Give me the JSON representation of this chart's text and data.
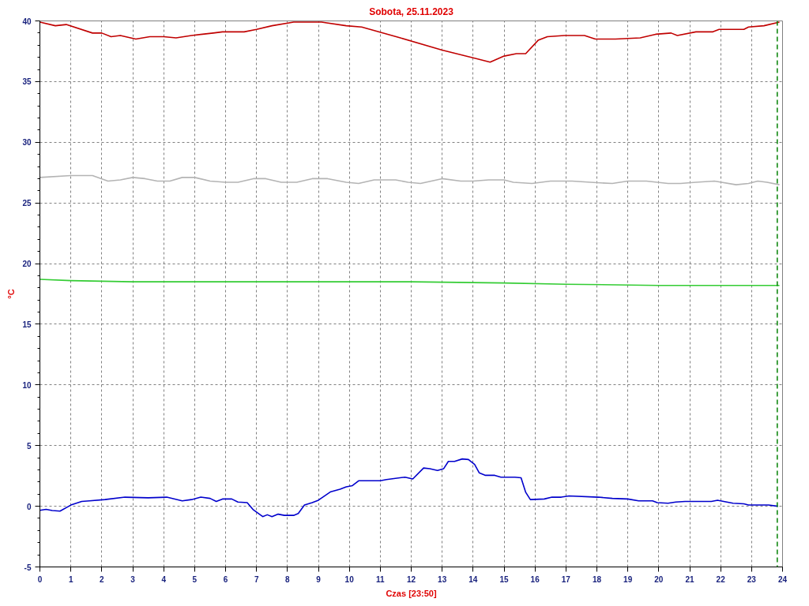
{
  "chart_data": {
    "type": "line",
    "title": "Sobota, 25.11.2023",
    "xlabel": "Czas [23:50]",
    "ylabel": "°C",
    "xlim": [
      0,
      24
    ],
    "ylim": [
      -5,
      40
    ],
    "xticks": [
      0,
      1,
      2,
      3,
      4,
      5,
      6,
      7,
      8,
      9,
      10,
      11,
      12,
      13,
      14,
      15,
      16,
      17,
      18,
      19,
      20,
      21,
      22,
      23,
      24
    ],
    "yticks": [
      -5,
      {
        "value": -4,
        "label": null
      },
      {
        "value": -3,
        "label": null
      },
      {
        "value": -2,
        "label": null
      },
      {
        "value": -1,
        "label": null
      },
      0,
      {
        "value": 1,
        "label": null
      },
      {
        "value": 2,
        "label": null
      },
      {
        "value": 3,
        "label": null
      },
      {
        "value": 4,
        "label": null
      },
      5,
      {
        "value": 6,
        "label": null
      },
      {
        "value": 7,
        "label": null
      },
      {
        "value": 8,
        "label": null
      },
      {
        "value": 9,
        "label": null
      },
      10,
      {
        "value": 11,
        "label": null
      },
      {
        "value": 12,
        "label": null
      },
      {
        "value": 13,
        "label": null
      },
      {
        "value": 14,
        "label": null
      },
      15,
      {
        "value": 16,
        "label": null
      },
      {
        "value": 17,
        "label": null
      },
      {
        "value": 18,
        "label": null
      },
      {
        "value": 19,
        "label": null
      },
      20,
      {
        "value": 21,
        "label": null
      },
      {
        "value": 22,
        "label": null
      },
      {
        "value": 23,
        "label": null
      },
      {
        "value": 24,
        "label": null
      },
      25,
      {
        "value": 26,
        "label": null
      },
      {
        "value": 27,
        "label": null
      },
      {
        "value": 28,
        "label": null
      },
      {
        "value": 29,
        "label": null
      },
      30,
      {
        "value": 31,
        "label": null
      },
      {
        "value": 32,
        "label": null
      },
      {
        "value": 33,
        "label": null
      },
      {
        "value": 34,
        "label": null
      },
      35,
      {
        "value": 36,
        "label": null
      },
      {
        "value": 37,
        "label": null
      },
      {
        "value": 38,
        "label": null
      },
      {
        "value": 39,
        "label": null
      },
      40
    ],
    "grid": true,
    "line_style": "solid",
    "marker": "none",
    "ref_lines": [
      {
        "axis": "x",
        "value": 23.83,
        "color": "#008000",
        "line_style": "dashed"
      }
    ],
    "series": [
      {
        "color": "#c00000",
        "x": [
          0,
          0.5,
          0.85,
          1.7,
          2.0,
          2.3,
          2.6,
          3.1,
          3.55,
          4.0,
          4.4,
          4.9,
          5.6,
          5.9,
          6.6,
          7.0,
          7.5,
          8.2,
          9.1,
          9.9,
          10.4,
          11.65,
          13.0,
          14.1,
          14.55,
          15.0,
          15.4,
          15.7,
          16.1,
          16.4,
          16.95,
          17.6,
          17.95,
          18.6,
          19.4,
          19.9,
          20.4,
          20.6,
          21.2,
          21.75,
          21.95,
          22.75,
          22.9,
          23.4,
          23.9
        ],
        "values": [
          39.9,
          39.6,
          39.7,
          39.0,
          39.0,
          38.7,
          38.8,
          38.5,
          38.7,
          38.7,
          38.6,
          38.8,
          39.0,
          39.1,
          39.1,
          39.3,
          39.6,
          39.9,
          39.9,
          39.6,
          39.5,
          38.6,
          37.6,
          36.9,
          36.6,
          37.1,
          37.3,
          37.3,
          38.4,
          38.7,
          38.8,
          38.8,
          38.5,
          38.5,
          38.6,
          38.9,
          39.0,
          38.8,
          39.1,
          39.1,
          39.3,
          39.3,
          39.5,
          39.6,
          39.9
        ]
      },
      {
        "color": "#b4b4b4",
        "x": [
          0,
          1.0,
          1.7,
          2.2,
          2.6,
          3.0,
          3.4,
          3.8,
          4.2,
          4.6,
          5.0,
          5.5,
          6.0,
          6.4,
          6.9,
          7.3,
          7.8,
          8.3,
          8.8,
          9.3,
          9.9,
          10.3,
          10.8,
          11.5,
          11.9,
          12.3,
          13.0,
          13.6,
          14.0,
          14.5,
          15.0,
          15.3,
          15.9,
          16.5,
          17.2,
          17.8,
          18.5,
          19.0,
          19.6,
          20.3,
          20.7,
          21.2,
          21.8,
          22.5,
          22.9,
          23.2,
          23.5,
          23.9
        ],
        "values": [
          27.1,
          27.25,
          27.25,
          26.8,
          26.9,
          27.1,
          27.0,
          26.8,
          26.8,
          27.1,
          27.1,
          26.8,
          26.7,
          26.7,
          27.0,
          27.0,
          26.7,
          26.7,
          27.0,
          27.0,
          26.7,
          26.6,
          26.9,
          26.9,
          26.7,
          26.6,
          27.0,
          26.8,
          26.8,
          26.9,
          26.9,
          26.7,
          26.6,
          26.8,
          26.8,
          26.7,
          26.6,
          26.8,
          26.8,
          26.6,
          26.6,
          26.7,
          26.8,
          26.5,
          26.6,
          26.8,
          26.7,
          26.5
        ]
      },
      {
        "color": "#33cc33",
        "x": [
          0,
          1,
          3,
          6,
          9,
          12,
          15,
          17,
          20,
          22,
          23.9
        ],
        "values": [
          18.7,
          18.6,
          18.5,
          18.5,
          18.5,
          18.5,
          18.4,
          18.3,
          18.2,
          18.2,
          18.2
        ]
      },
      {
        "color": "#0000cc",
        "x": [
          0,
          0.2,
          0.4,
          0.65,
          1.0,
          1.35,
          1.6,
          2.1,
          2.75,
          3.5,
          4.1,
          4.6,
          4.9,
          5.2,
          5.5,
          5.7,
          5.9,
          6.2,
          6.4,
          6.7,
          6.9,
          7.2,
          7.35,
          7.5,
          7.7,
          7.9,
          8.2,
          8.35,
          8.55,
          8.8,
          9.0,
          9.4,
          9.7,
          9.9,
          10.1,
          10.3,
          11.0,
          11.2,
          11.8,
          12.05,
          12.4,
          12.6,
          12.85,
          13.05,
          13.2,
          13.4,
          13.65,
          13.85,
          14.05,
          14.2,
          14.4,
          14.7,
          14.9,
          15.35,
          15.55,
          15.7,
          15.85,
          16.3,
          16.55,
          16.85,
          17.1,
          18.05,
          18.5,
          19.0,
          19.35,
          19.8,
          19.95,
          20.3,
          20.55,
          20.85,
          21.7,
          21.9,
          22.1,
          22.4,
          22.75,
          22.9,
          23.55,
          23.85
        ],
        "values": [
          -0.33,
          -0.25,
          -0.35,
          -0.4,
          0.1,
          0.4,
          0.45,
          0.55,
          0.75,
          0.7,
          0.75,
          0.45,
          0.55,
          0.75,
          0.65,
          0.4,
          0.6,
          0.6,
          0.35,
          0.3,
          -0.3,
          -0.85,
          -0.7,
          -0.85,
          -0.65,
          -0.75,
          -0.75,
          -0.6,
          0.1,
          0.3,
          0.5,
          1.2,
          1.4,
          1.6,
          1.7,
          2.1,
          2.1,
          2.2,
          2.4,
          2.25,
          3.15,
          3.1,
          2.95,
          3.1,
          3.7,
          3.7,
          3.9,
          3.85,
          3.45,
          2.75,
          2.55,
          2.55,
          2.4,
          2.4,
          2.35,
          1.15,
          0.55,
          0.6,
          0.75,
          0.75,
          0.85,
          0.75,
          0.65,
          0.6,
          0.45,
          0.45,
          0.3,
          0.25,
          0.35,
          0.4,
          0.4,
          0.5,
          0.4,
          0.25,
          0.2,
          0.1,
          0.1,
          0.0
        ]
      }
    ]
  }
}
